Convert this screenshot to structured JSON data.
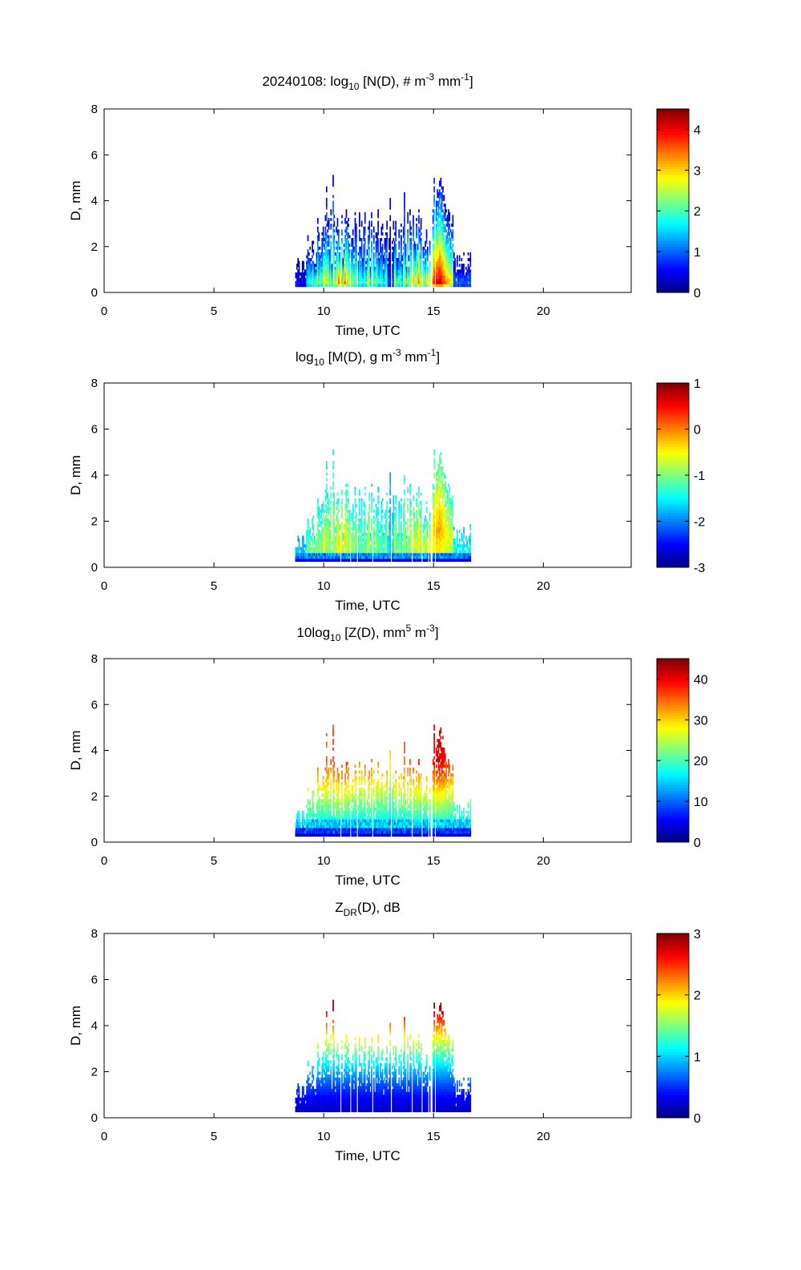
{
  "chart_data": [
    {
      "type": "heatmap",
      "title_parts": {
        "prefix": "20240108: log",
        "sub": "10",
        "main": " [N(D), # m",
        "sup1": "-3",
        "mid": " mm",
        "sup2": "-1",
        "end": "]"
      },
      "xlabel": "Time, UTC",
      "ylabel": "D, mm",
      "xlim": [
        0,
        24
      ],
      "ylim": [
        0,
        8
      ],
      "xticks": [
        "0",
        "5",
        "10",
        "15",
        "20"
      ],
      "yticks": [
        "0",
        "2",
        "4",
        "6",
        "8"
      ],
      "colorbar": {
        "range": [
          0,
          4.5
        ],
        "ticks": [
          "0",
          "1",
          "2",
          "3",
          "4"
        ],
        "tick_values": [
          0,
          1,
          2,
          3,
          4
        ]
      },
      "field": "N",
      "data_time_range": [
        8.7,
        16.7
      ],
      "max_D": 5.1
    },
    {
      "type": "heatmap",
      "title_parts": {
        "prefix": "log",
        "sub": "10",
        "main": " [M(D), g m",
        "sup1": "-3",
        "mid": " mm",
        "sup2": "-1",
        "end": "]"
      },
      "xlabel": "Time, UTC",
      "ylabel": "D, mm",
      "xlim": [
        0,
        24
      ],
      "ylim": [
        0,
        8
      ],
      "xticks": [
        "0",
        "5",
        "10",
        "15",
        "20"
      ],
      "yticks": [
        "0",
        "2",
        "4",
        "6",
        "8"
      ],
      "colorbar": {
        "range": [
          -3,
          1
        ],
        "ticks": [
          "-3",
          "-2",
          "-1",
          "0",
          "1"
        ],
        "tick_values": [
          -3,
          -2,
          -1,
          0,
          1
        ]
      },
      "field": "M",
      "data_time_range": [
        8.7,
        16.7
      ],
      "max_D": 5.1
    },
    {
      "type": "heatmap",
      "title_parts": {
        "prefix": "10log",
        "sub": "10",
        "main": " [Z(D),  mm",
        "sup1": "5",
        "mid": " m",
        "sup2": "-3",
        "end": "]"
      },
      "xlabel": "Time, UTC",
      "ylabel": "D, mm",
      "xlim": [
        0,
        24
      ],
      "ylim": [
        0,
        8
      ],
      "xticks": [
        "0",
        "5",
        "10",
        "15",
        "20"
      ],
      "yticks": [
        "0",
        "2",
        "4",
        "6",
        "8"
      ],
      "colorbar": {
        "range": [
          0,
          45
        ],
        "ticks": [
          "0",
          "10",
          "20",
          "30",
          "40"
        ],
        "tick_values": [
          0,
          10,
          20,
          30,
          40
        ]
      },
      "field": "Z",
      "data_time_range": [
        8.7,
        16.7
      ],
      "max_D": 5.1
    },
    {
      "type": "heatmap",
      "title_parts": {
        "prefix": "Z",
        "sub": "DR",
        "main": "(D), dB",
        "sup1": "",
        "mid": "",
        "sup2": "",
        "end": ""
      },
      "xlabel": "Time, UTC",
      "ylabel": "D, mm",
      "xlim": [
        0,
        24
      ],
      "ylim": [
        0,
        8
      ],
      "xticks": [
        "0",
        "5",
        "10",
        "15",
        "20"
      ],
      "yticks": [
        "0",
        "2",
        "4",
        "6",
        "8"
      ],
      "colorbar": {
        "range": [
          0,
          3
        ],
        "ticks": [
          "0",
          "1",
          "2",
          "3"
        ],
        "tick_values": [
          0,
          1,
          2,
          3
        ]
      },
      "field": "ZDR",
      "data_time_range": [
        8.7,
        16.7
      ],
      "max_D": 5.1
    }
  ]
}
